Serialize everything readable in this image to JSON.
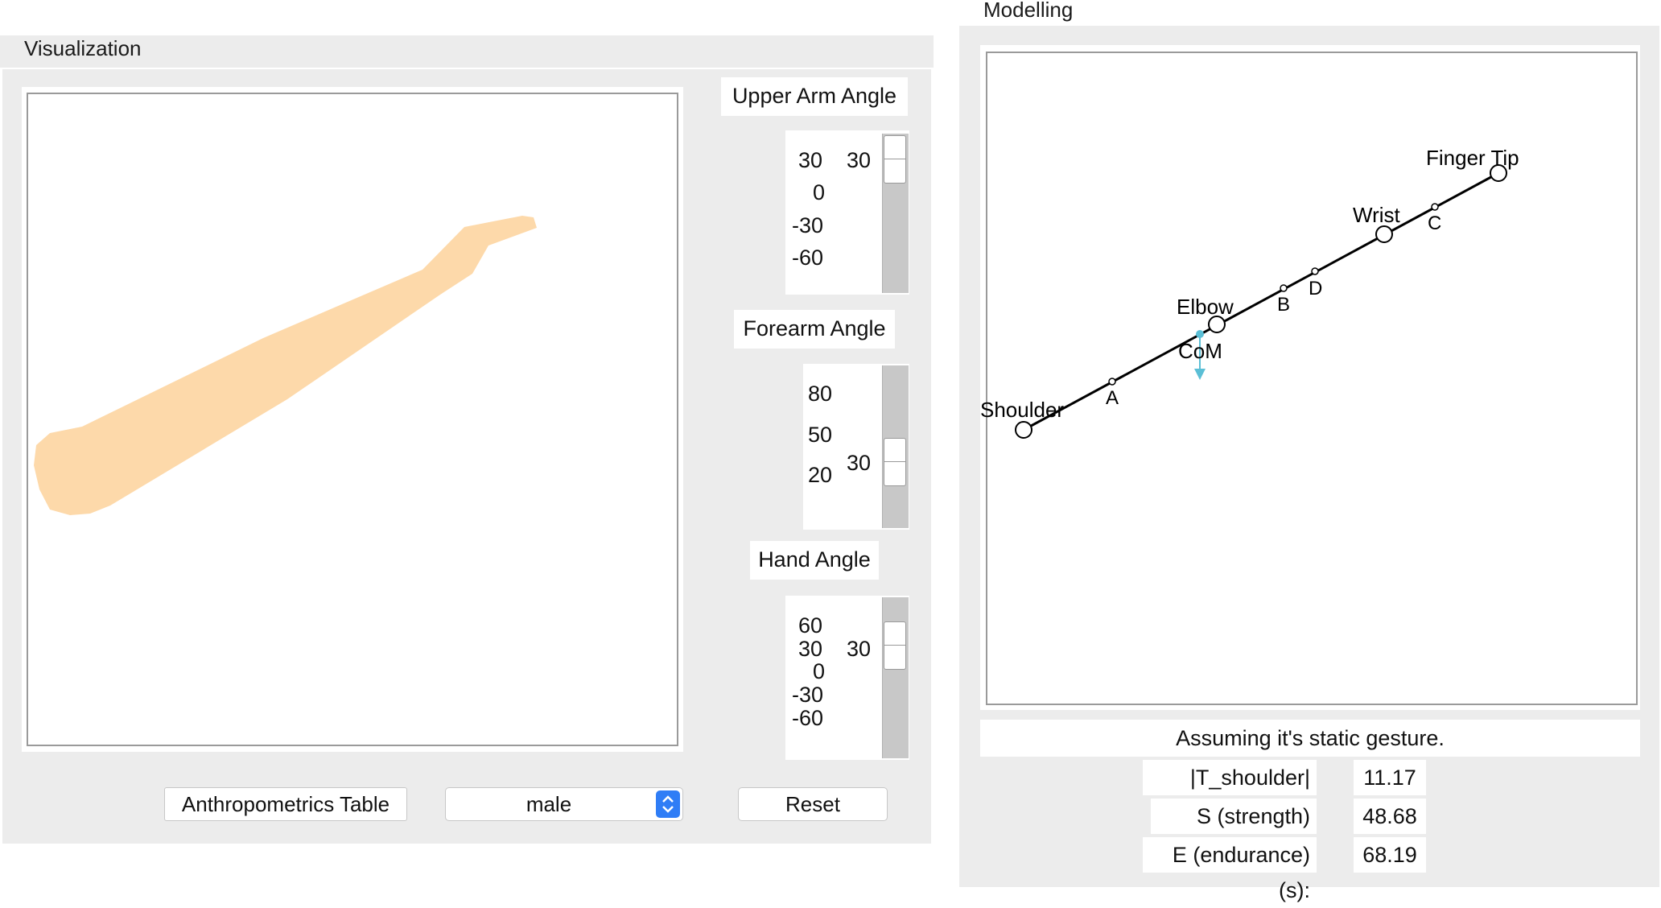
{
  "visualization": {
    "title": "Visualization",
    "upper_arm": {
      "label": "Upper Arm Angle",
      "ticks": [
        "30",
        "0",
        "-30",
        "-60"
      ],
      "value": "30"
    },
    "forearm": {
      "label": "Forearm Angle",
      "ticks": [
        "80",
        "50",
        "20"
      ],
      "value": "30"
    },
    "hand": {
      "label": "Hand Angle",
      "ticks": [
        "60",
        "30",
        "0",
        "-30",
        "-60"
      ],
      "value": "30"
    },
    "anthropometrics_label": "Anthropometrics Table",
    "gender_select": "male",
    "reset_label": "Reset",
    "arm_color": "#fdd9aa"
  },
  "modelling": {
    "title": "Modelling",
    "points": {
      "finger_tip": "Finger Tip",
      "wrist": "Wrist",
      "elbow": "Elbow",
      "shoulder": "Shoulder",
      "com": "CoM",
      "a": "A",
      "b": "B",
      "c": "C",
      "d": "D"
    },
    "com_color": "#5bbfd6",
    "status": "Assuming it's static gesture.",
    "results": [
      {
        "label": "|T_shoulder| (Nm):",
        "value": "11.17"
      },
      {
        "label": "S (strength) (%):",
        "value": "48.68"
      },
      {
        "label": "E (endurance) (s):",
        "value": "68.19"
      }
    ]
  }
}
